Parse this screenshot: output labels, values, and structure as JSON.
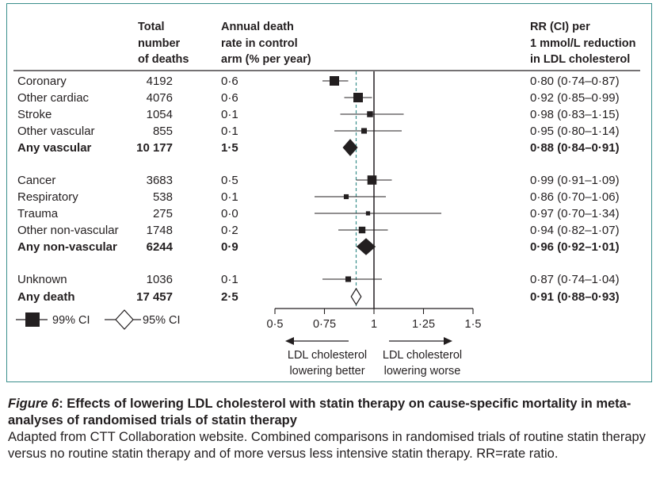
{
  "chart_data": {
    "type": "forest",
    "headers": {
      "deaths": [
        "Total",
        "number",
        "of deaths"
      ],
      "rate": [
        "Annual death",
        "rate in control",
        "arm (% per year)"
      ],
      "rr": [
        "RR (CI) per",
        "1 mmol/L reduction",
        "in LDL cholesterol"
      ]
    },
    "rows": [
      {
        "label": "Coronary",
        "deaths": "4192",
        "rate": "0·6",
        "rr_text": "0·80 (0·74–0·87)",
        "rr": 0.8,
        "lo": 0.74,
        "hi": 0.87,
        "bold": false,
        "marker": "square",
        "weight": 1.0
      },
      {
        "label": "Other cardiac",
        "deaths": "4076",
        "rate": "0·6",
        "rr_text": "0·92 (0·85–0·99)",
        "rr": 0.92,
        "lo": 0.85,
        "hi": 0.99,
        "bold": false,
        "marker": "square",
        "weight": 1.0
      },
      {
        "label": "Stroke",
        "deaths": "1054",
        "rate": "0·1",
        "rr_text": "0·98 (0·83–1·15)",
        "rr": 0.98,
        "lo": 0.83,
        "hi": 1.15,
        "bold": false,
        "marker": "square",
        "weight": 0.5
      },
      {
        "label": "Other vascular",
        "deaths": "855",
        "rate": "0·1",
        "rr_text": "0·95 (0·80–1·14)",
        "rr": 0.95,
        "lo": 0.8,
        "hi": 1.14,
        "bold": false,
        "marker": "square",
        "weight": 0.45
      },
      {
        "label": "Any vascular",
        "deaths": "10 177",
        "rate": "1·5",
        "rr_text": "0·88 (0·84–0·91)",
        "rr": 0.88,
        "lo": 0.84,
        "hi": 0.91,
        "bold": true,
        "marker": "diamond",
        "filled": true
      },
      {
        "label": "Cancer",
        "deaths": "3683",
        "rate": "0·5",
        "rr_text": "0·99 (0·91–1·09)",
        "rr": 0.99,
        "lo": 0.91,
        "hi": 1.09,
        "bold": false,
        "marker": "square",
        "weight": 0.95
      },
      {
        "label": "Respiratory",
        "deaths": "538",
        "rate": "0·1",
        "rr_text": "0·86 (0·70–1·06)",
        "rr": 0.86,
        "lo": 0.7,
        "hi": 1.06,
        "bold": false,
        "marker": "square",
        "weight": 0.35
      },
      {
        "label": "Trauma",
        "deaths": "275",
        "rate": "0·0",
        "rr_text": "0·97 (0·70–1·34)",
        "rr": 0.97,
        "lo": 0.7,
        "hi": 1.34,
        "bold": false,
        "marker": "square",
        "weight": 0.25
      },
      {
        "label": "Other non-vascular",
        "deaths": "1748",
        "rate": "0·2",
        "rr_text": "0·94 (0·82–1·07)",
        "rr": 0.94,
        "lo": 0.82,
        "hi": 1.07,
        "bold": false,
        "marker": "square",
        "weight": 0.6
      },
      {
        "label": "Any non-vascular",
        "deaths": "6244",
        "rate": "0·9",
        "rr_text": "0·96 (0·92–1·01)",
        "rr": 0.96,
        "lo": 0.92,
        "hi": 1.01,
        "bold": true,
        "marker": "diamond",
        "filled": true
      },
      {
        "label": "Unknown",
        "deaths": "1036",
        "rate": "0·1",
        "rr_text": "0·87 (0·74–1·04)",
        "rr": 0.87,
        "lo": 0.74,
        "hi": 1.04,
        "bold": false,
        "marker": "square",
        "weight": 0.45
      },
      {
        "label": "Any death",
        "deaths": "17 457",
        "rate": "2·5",
        "rr_text": "0·91 (0·88–0·93)",
        "rr": 0.91,
        "lo": 0.88,
        "hi": 0.93,
        "bold": true,
        "marker": "diamond",
        "filled": false
      }
    ],
    "x_axis": {
      "ticks": [
        0.5,
        0.75,
        1,
        1.25,
        1.5
      ],
      "tick_labels": [
        "0·5",
        "0·75",
        "1",
        "1·25",
        "1·5"
      ],
      "xlim": [
        0.5,
        1.5
      ]
    },
    "reference_line": 1,
    "overall_dashed_line": 0.91,
    "legend": {
      "square_label": "99% CI",
      "diamond_label": "95% CI"
    },
    "direction_labels": {
      "left": [
        "LDL cholesterol",
        "lowering better"
      ],
      "right": [
        "LDL cholesterol",
        "lowering worse"
      ]
    },
    "colors": {
      "frame": "#3a8f8c",
      "ink": "#231f20",
      "dashed_line": "#3a8f8c"
    }
  },
  "caption": {
    "label": "Figure 6",
    "title": ": Effects of lowering LDL cholesterol with statin therapy on cause-specific mortality in meta-analyses of randomised trials of statin therapy",
    "text": "Adapted from CTT Collaboration website. Combined comparisons in randomised trials of routine statin therapy versus no routine statin therapy and of more versus less intensive statin therapy. RR=rate ratio."
  }
}
